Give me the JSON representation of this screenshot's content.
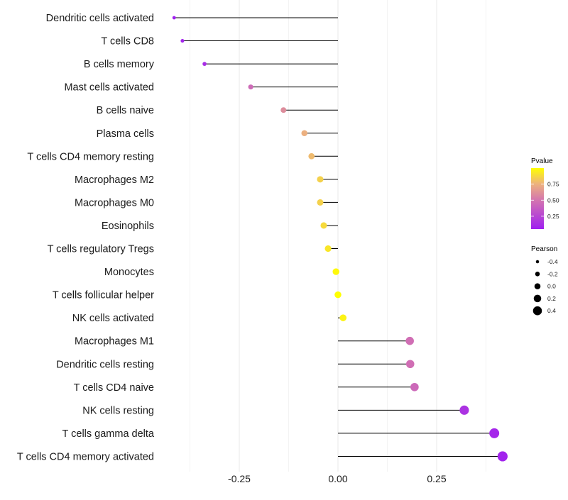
{
  "chart_data": {
    "type": "lollipop",
    "title": "",
    "xlabel": "",
    "ylabel": "",
    "xlim": [
      -0.44,
      0.56
    ],
    "x_ticks": [
      -0.25,
      0.0,
      0.25
    ],
    "x_tick_labels": [
      "-0.25",
      "0.00",
      "0.25"
    ],
    "grid": true,
    "categories": [
      "Dendritic cells activated",
      "T cells CD8",
      "B cells memory",
      "Mast cells activated",
      "B cells naive",
      "Plasma cells",
      "T cells CD4 memory resting",
      "Macrophages M2",
      "Macrophages M0",
      "Eosinophils",
      "T cells regulatory  Tregs ",
      "Monocytes",
      "T cells follicular helper",
      "NK cells activated",
      "Macrophages M1",
      "Dendritic cells resting",
      "T cells CD4 naive",
      "NK cells resting",
      "T cells gamma delta",
      "T cells CD4 memory activated"
    ],
    "pearson": [
      -0.415,
      -0.394,
      -0.338,
      -0.221,
      -0.138,
      -0.085,
      -0.067,
      -0.045,
      -0.045,
      -0.036,
      -0.025,
      -0.005,
      0.0,
      0.013,
      0.182,
      0.183,
      0.194,
      0.32,
      0.396,
      0.417
    ],
    "pvalue": [
      0.05,
      0.08,
      0.12,
      0.45,
      0.6,
      0.74,
      0.78,
      0.85,
      0.85,
      0.88,
      0.92,
      0.98,
      1.0,
      0.96,
      0.47,
      0.47,
      0.44,
      0.15,
      0.09,
      0.07
    ],
    "color_legend": {
      "title": "Pvalue",
      "ticks": [
        0.25,
        0.5,
        0.75
      ],
      "tick_labels": [
        "0.25",
        "0.50",
        "0.75"
      ],
      "range": [
        0.05,
        1.0
      ],
      "low_color": "#A020F0",
      "mid_color": "#D374B0",
      "high_color": "#FFFF00"
    },
    "size_legend": {
      "title": "Pearson",
      "values": [
        -0.4,
        -0.2,
        0.0,
        0.2,
        0.4
      ],
      "labels": [
        "-0.4",
        "-0.2",
        "0.0",
        "0.2",
        "0.4"
      ]
    },
    "legend_placement": "right"
  }
}
